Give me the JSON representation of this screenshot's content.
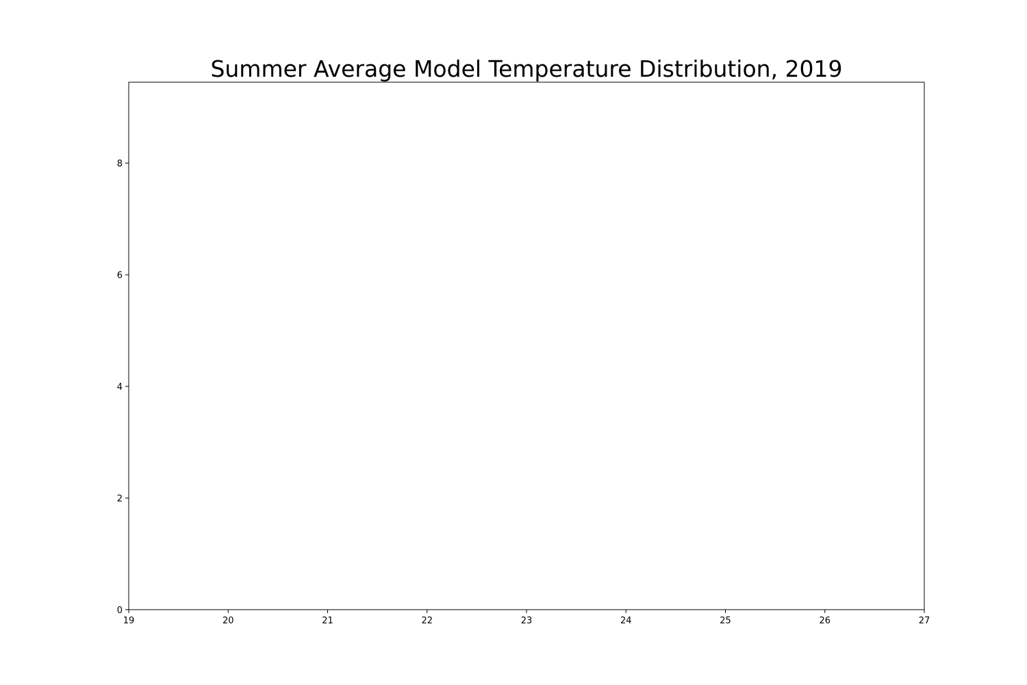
{
  "chart_data": {
    "type": "bar",
    "title": "Summer Average Model Temperature Distribution, 2019",
    "xlabel": "",
    "ylabel": "",
    "xlim": [
      19,
      27
    ],
    "ylim": [
      0,
      9.45
    ],
    "x_ticks": [
      19,
      20,
      21,
      22,
      23,
      24,
      25,
      26,
      27
    ],
    "y_ticks": [
      0,
      2,
      4,
      6,
      8
    ],
    "x": [],
    "values": [],
    "grid": false,
    "colors": {
      "axes": "#000000",
      "background": "#ffffff"
    }
  }
}
